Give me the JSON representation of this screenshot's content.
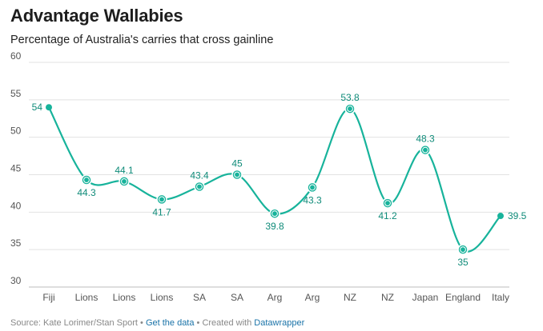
{
  "header": {
    "title": "Advantage Wallabies",
    "subtitle": "Percentage of Australia's carries that cross gainline"
  },
  "footer": {
    "source_prefix": "Source: Kate Lorimer/Stan Sport",
    "sep1": " • ",
    "get_data": "Get the data",
    "created_with": " • Created with ",
    "tool": "Datawrapper"
  },
  "colors": {
    "line": "#17b39b",
    "label": "#0f8b79",
    "grid": "#e2e2e2",
    "marker_ring": "#ffffff"
  },
  "chart_data": {
    "type": "line",
    "title": "Advantage Wallabies",
    "subtitle": "Percentage of Australia's carries that cross gainline",
    "categories": [
      "Fiji",
      "Lions",
      "Lions",
      "Lions",
      "SA",
      "SA",
      "Arg",
      "Arg",
      "NZ",
      "NZ",
      "Japan",
      "England",
      "Italy"
    ],
    "series": [
      {
        "values": [
          54,
          44.3,
          44.1,
          41.7,
          43.4,
          45,
          39.8,
          43.3,
          53.8,
          41.2,
          48.3,
          35,
          39.5
        ]
      }
    ],
    "value_labels": [
      "54",
      "44.3",
      "44.1",
      "41.7",
      "43.4",
      "45",
      "39.8",
      "43.3",
      "53.8",
      "41.2",
      "48.3",
      "35",
      "39.5"
    ],
    "label_position": [
      "left",
      "below",
      "above",
      "below",
      "above",
      "above",
      "below",
      "below",
      "above",
      "below",
      "above",
      "below",
      "right"
    ],
    "marker_style": [
      "dot",
      "ring",
      "ring",
      "ring",
      "ring",
      "ring",
      "ring",
      "ring",
      "ring",
      "ring",
      "ring",
      "ring",
      "dot"
    ],
    "yticks": [
      30,
      35,
      40,
      45,
      50,
      55,
      60
    ],
    "ylim": [
      30,
      60
    ],
    "grid": true,
    "curve": "smooth",
    "xlabel": "",
    "ylabel": ""
  }
}
